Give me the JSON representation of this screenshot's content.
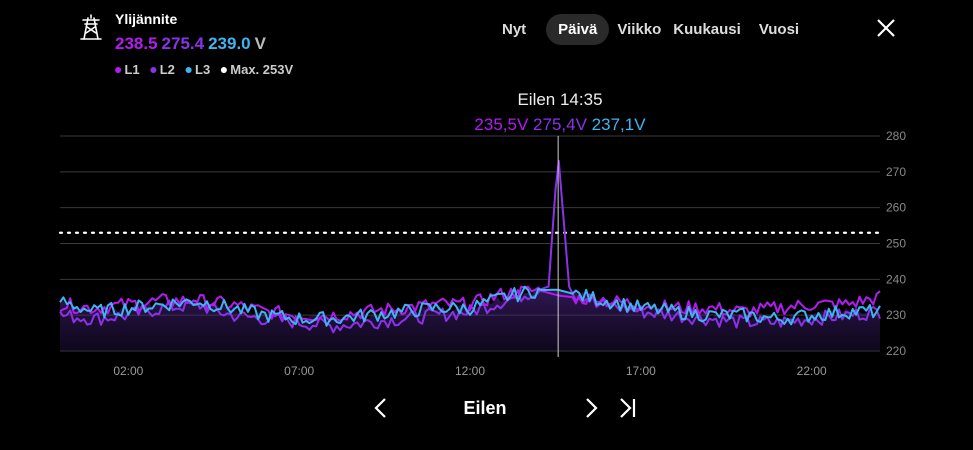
{
  "header": {
    "title": "Ylijännite",
    "values": [
      {
        "text": "238.5",
        "color": "#b21cf0"
      },
      {
        "text": "275.4",
        "color": "#8a32e8"
      },
      {
        "text": "239.0",
        "color": "#3fb4f2"
      },
      {
        "text": "V",
        "color": "#bbbbbb"
      }
    ],
    "legend": [
      {
        "label": "L1",
        "color": "#b21cf0"
      },
      {
        "label": "L2",
        "color": "#8a32e8"
      },
      {
        "label": "L3",
        "color": "#3fb4f2"
      },
      {
        "label": "Max. 253V",
        "color": "#ffffff"
      }
    ]
  },
  "tabs": [
    {
      "label": "Nyt",
      "active": false
    },
    {
      "label": "Päivä",
      "active": true
    },
    {
      "label": "Viikko",
      "active": false
    },
    {
      "label": "Kuukausi",
      "active": false
    },
    {
      "label": "Vuosi",
      "active": false
    }
  ],
  "tooltip": {
    "time": "Eilen 14:35",
    "values": [
      {
        "text": "235,5V",
        "color": "#b21cf0"
      },
      {
        "text": "275,4V",
        "color": "#8a32e8"
      },
      {
        "text": "237,1V",
        "color": "#3fb4f2"
      }
    ]
  },
  "nav": {
    "label": "Eilen"
  },
  "chart_data": {
    "type": "line",
    "x_ticks": [
      "02:00",
      "07:00",
      "12:00",
      "17:00",
      "22:00"
    ],
    "y_ticks": [
      220,
      230,
      240,
      250,
      260,
      270,
      280
    ],
    "ylim": [
      220,
      280
    ],
    "xlim_hours": [
      0,
      24
    ],
    "max_line": 253,
    "cursor_hour": 14.58,
    "series": [
      {
        "name": "L1",
        "color": "#b21cf0",
        "x": [
          0,
          1,
          2,
          3,
          4,
          5,
          6,
          7,
          8,
          9,
          10,
          11,
          12,
          13,
          14,
          14.58,
          15,
          16,
          17,
          18,
          19,
          20,
          21,
          22,
          23,
          24
        ],
        "values": [
          233,
          232,
          233,
          234,
          234,
          233,
          231,
          230,
          230,
          231,
          232,
          233,
          233,
          236,
          237,
          235.5,
          235,
          234,
          233,
          232,
          232,
          231,
          232,
          233,
          233,
          235
        ]
      },
      {
        "name": "L2",
        "color": "#8a32e8",
        "x": [
          0,
          1,
          2,
          3,
          4,
          5,
          6,
          7,
          8,
          9,
          10,
          11,
          12,
          13,
          14,
          14.3,
          14.58,
          14.9,
          15,
          16,
          17,
          18,
          19,
          20,
          21,
          22,
          23,
          24
        ],
        "values": [
          230,
          229,
          230,
          232,
          233,
          230,
          229,
          228,
          227,
          228,
          229,
          230,
          231,
          234,
          237,
          238,
          275.4,
          238,
          236,
          233,
          231,
          230,
          229,
          228,
          228,
          229,
          230,
          231
        ]
      },
      {
        "name": "L3",
        "color": "#3fb4f2",
        "x": [
          0,
          1,
          2,
          3,
          4,
          5,
          6,
          7,
          8,
          9,
          10,
          11,
          12,
          13,
          14,
          14.58,
          15,
          16,
          17,
          18,
          19,
          20,
          21,
          22,
          23,
          24
        ],
        "values": [
          234,
          231,
          232,
          233,
          234,
          232,
          230,
          229,
          229,
          230,
          231,
          232,
          232,
          235,
          237,
          237.1,
          236,
          234,
          232,
          231,
          230,
          230,
          229,
          230,
          231,
          231
        ]
      }
    ]
  }
}
